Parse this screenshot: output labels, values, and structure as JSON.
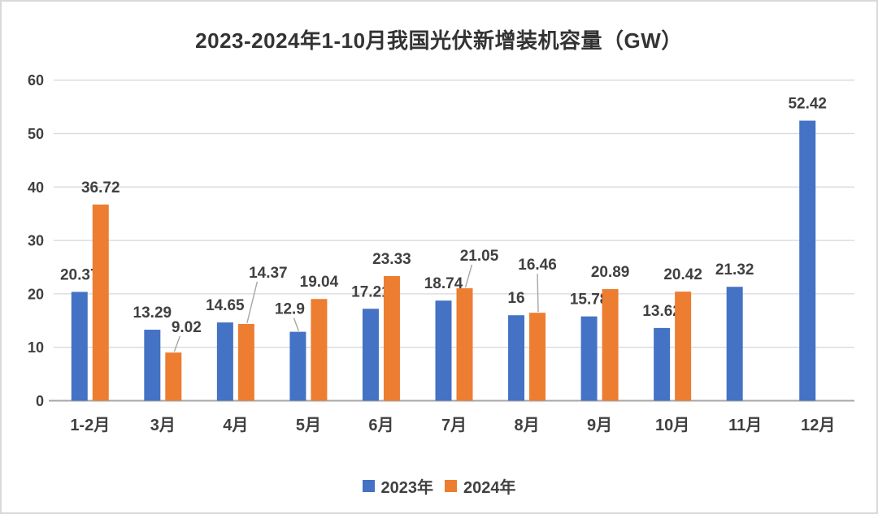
{
  "chart_data": {
    "type": "bar",
    "title": "2023-2024年1-10月我国光伏新增装机容量（GW）",
    "categories": [
      "1-2月",
      "3月",
      "4月",
      "5月",
      "6月",
      "7月",
      "8月",
      "9月",
      "10月",
      "11月",
      "12月"
    ],
    "series": [
      {
        "name": "2023年",
        "color": "#4472C4",
        "values": [
          20.37,
          13.29,
          14.65,
          12.9,
          17.21,
          18.74,
          16,
          15.78,
          13.62,
          21.32,
          52.42
        ]
      },
      {
        "name": "2024年",
        "color": "#ED7D31",
        "values": [
          36.72,
          9.02,
          14.37,
          19.04,
          23.33,
          21.05,
          16.46,
          20.89,
          20.42,
          null,
          null
        ]
      }
    ],
    "xlabel": "",
    "ylabel": "",
    "unit": "GW",
    "ylim": [
      0,
      60
    ],
    "ytick_step": 10,
    "yticks": [
      0,
      10,
      20,
      30,
      40,
      50,
      60
    ],
    "grid": "horizontal",
    "legend_position": "bottom",
    "data_labels": true,
    "label_layout_hints": [
      {
        "series": 0,
        "index": 3,
        "dx": -10,
        "raise": 7,
        "leader": true
      },
      {
        "series": 1,
        "index": 1,
        "dx": 16,
        "raise": 10,
        "leader": true
      },
      {
        "series": 1,
        "index": 2,
        "dx": 27,
        "raise": 42,
        "leader": true
      },
      {
        "series": 1,
        "index": 5,
        "dx": 18,
        "raise": 19,
        "leader": true
      },
      {
        "series": 1,
        "index": 6,
        "dx": 0,
        "raise": 38,
        "leader": true
      }
    ],
    "colors": {
      "series_2023": "#4472C4",
      "series_2024": "#ED7D31",
      "label_text": "#404040",
      "title_text": "#333333",
      "gridline": "#D9D9D9",
      "axis_line": "#A6A6A6",
      "leader_line": "#A6A6A6",
      "background": "#FFFFFF",
      "frame_border": "#D9D9D9"
    }
  }
}
